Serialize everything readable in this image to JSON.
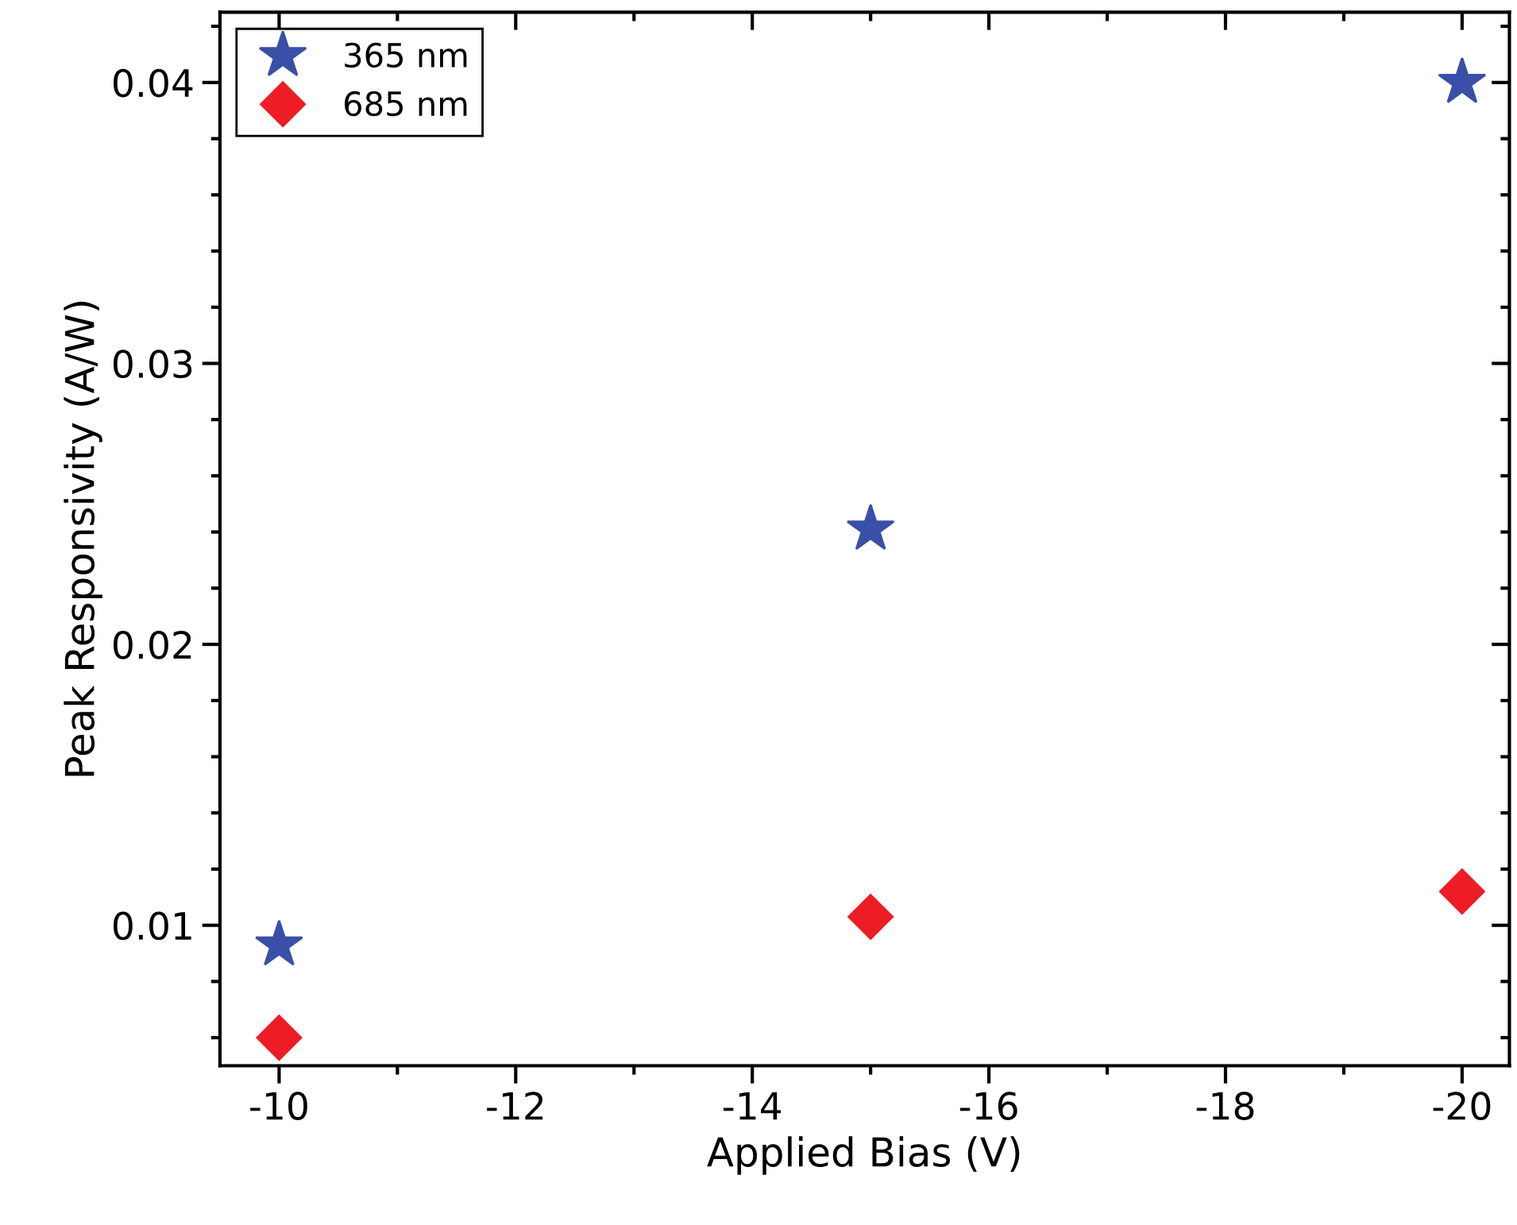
{
  "chart_data": {
    "type": "scatter",
    "xlabel": "Applied Bias (V)",
    "ylabel": "Peak Responsivity (A/W)",
    "x": [
      -10,
      -15,
      -20
    ],
    "series": [
      {
        "name": "365 nm",
        "color": "#3a4fa8",
        "marker": "star",
        "values": [
          0.0093,
          0.0241,
          0.04
        ]
      },
      {
        "name": "685 nm",
        "color": "#ee1c25",
        "marker": "diamond",
        "values": [
          0.006,
          0.0103,
          0.0112
        ]
      }
    ],
    "xlim": [
      -9.5,
      -20.4
    ],
    "xticks": [
      -10,
      -12,
      -14,
      -16,
      -18,
      -20
    ],
    "ylim": [
      0.005,
      0.0425
    ],
    "yticks": [
      0.01,
      0.02,
      0.03,
      0.04
    ],
    "grid": false,
    "legend": "top left"
  }
}
